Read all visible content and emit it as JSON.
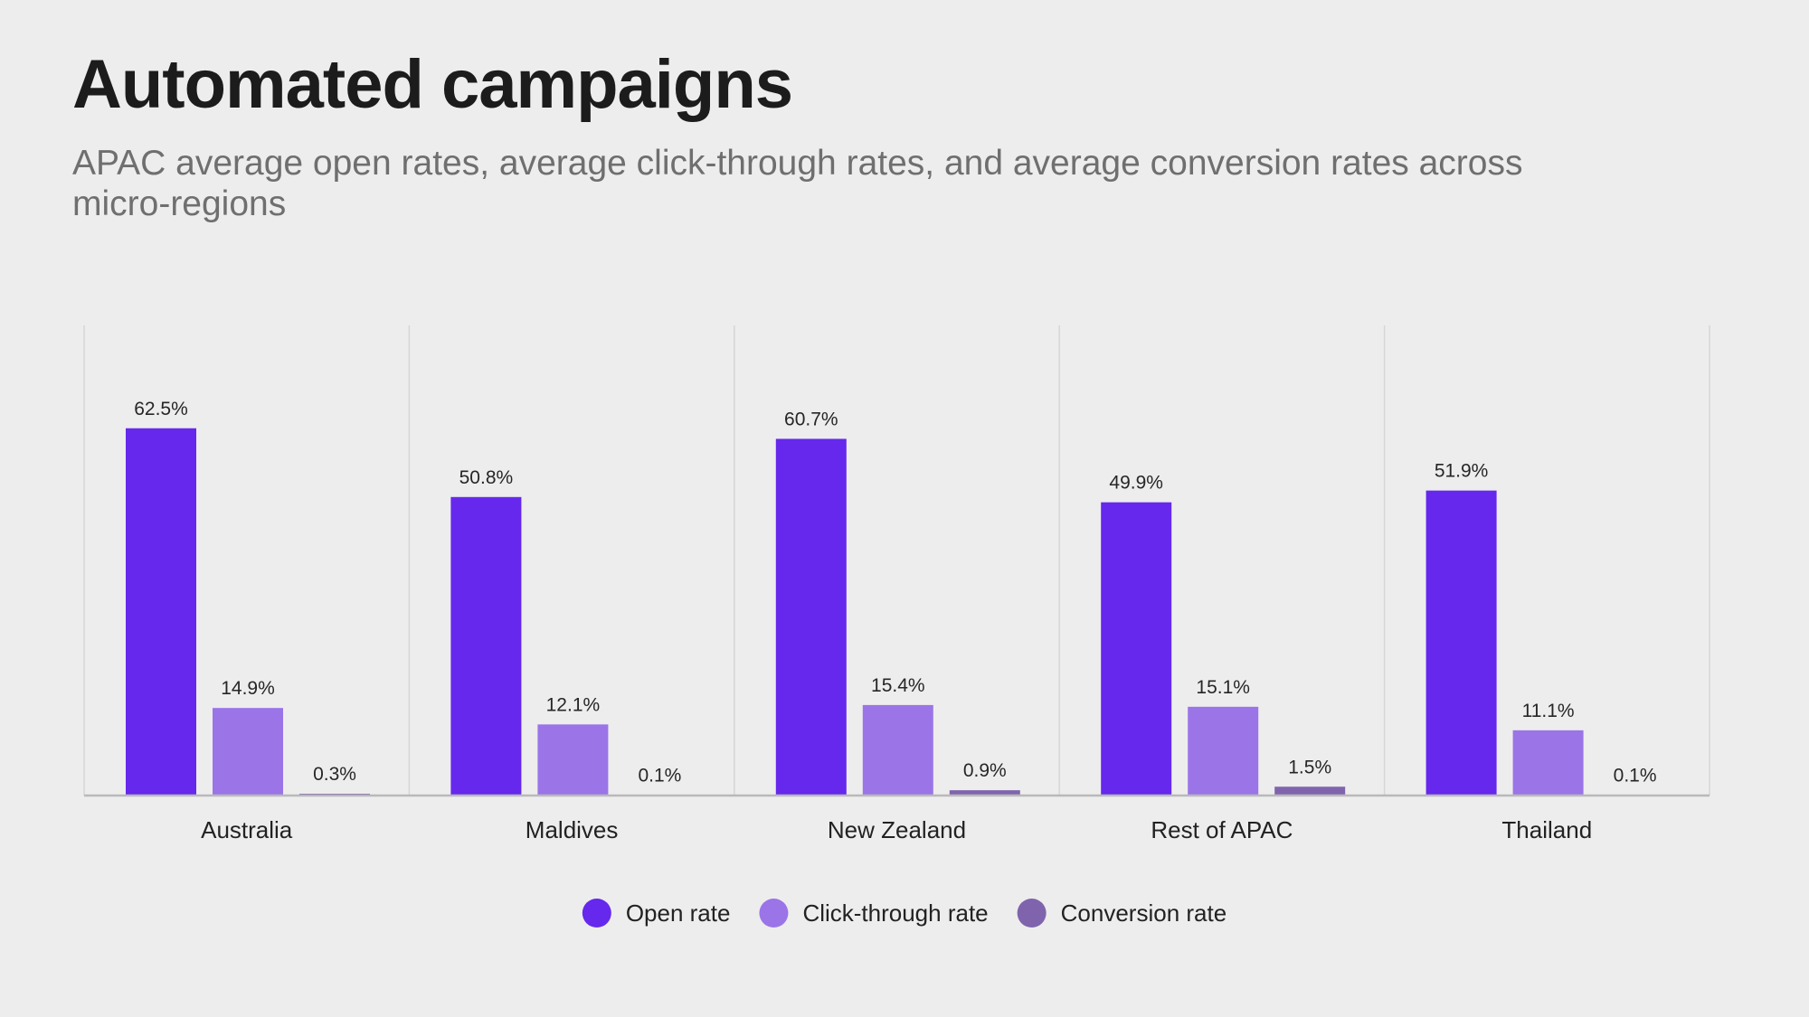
{
  "title": "Automated campaigns",
  "subtitle": "APAC average open rates, average click-through rates, and average conversion rates across micro-regions",
  "chart_data": {
    "type": "bar",
    "categories": [
      "Australia",
      "Maldives",
      "New Zealand",
      "Rest of APAC",
      "Thailand"
    ],
    "series": [
      {
        "name": "Open rate",
        "color": "#6628ec",
        "values": [
          62.5,
          50.8,
          60.7,
          49.9,
          51.9
        ]
      },
      {
        "name": "Click-through rate",
        "color": "#9b74e8",
        "values": [
          14.9,
          12.1,
          15.4,
          15.1,
          11.1
        ]
      },
      {
        "name": "Conversion rate",
        "color": "#7f64ad",
        "values": [
          0.3,
          0.1,
          0.9,
          1.5,
          0.1
        ]
      }
    ],
    "value_suffix": "%",
    "ylim": [
      0,
      80
    ],
    "legend_position": "bottom-center",
    "xlabel": "",
    "ylabel": ""
  }
}
